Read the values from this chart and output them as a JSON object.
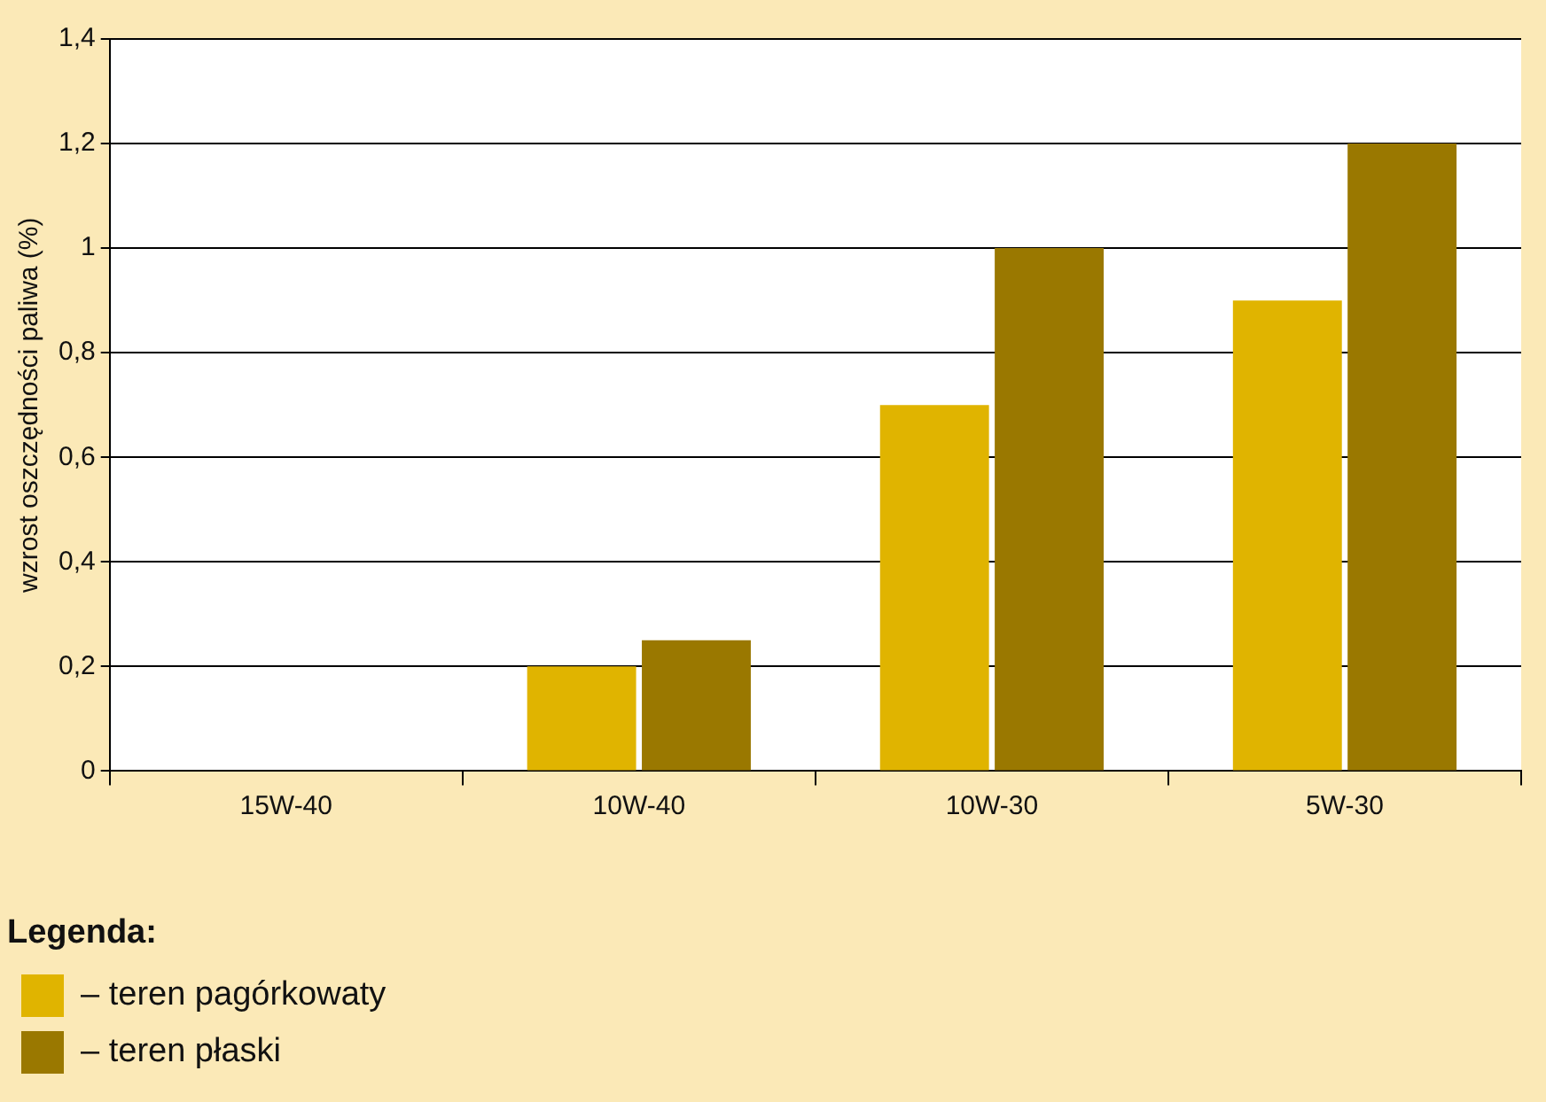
{
  "chart_data": {
    "type": "bar",
    "ylabel": "wzrost oszczędności paliwa (%)",
    "legend_title": "Legenda:",
    "legend": "bottom left",
    "grid": "y",
    "categories": [
      "15W-40",
      "10W-40",
      "10W-30",
      "5W-30"
    ],
    "series": [
      {
        "name": "– teren pagórkowaty",
        "color": "#e0b400",
        "values": [
          0,
          0.2,
          0.7,
          0.9
        ]
      },
      {
        "name": "– teren płaski",
        "color": "#9a7800",
        "values": [
          0,
          0.25,
          1.0,
          1.2
        ]
      }
    ],
    "ylim": [
      0,
      1.4
    ],
    "yticks": [
      0,
      {
        "value": 0.2,
        "label": "0,2"
      },
      {
        "value": 0.4,
        "label": "0,4"
      },
      {
        "value": 0.6,
        "label": "0,6"
      },
      {
        "value": 0.8,
        "label": "0,8"
      },
      1,
      {
        "value": 1.2,
        "label": "1,2"
      },
      {
        "value": 1.4,
        "label": "1,4"
      }
    ]
  }
}
